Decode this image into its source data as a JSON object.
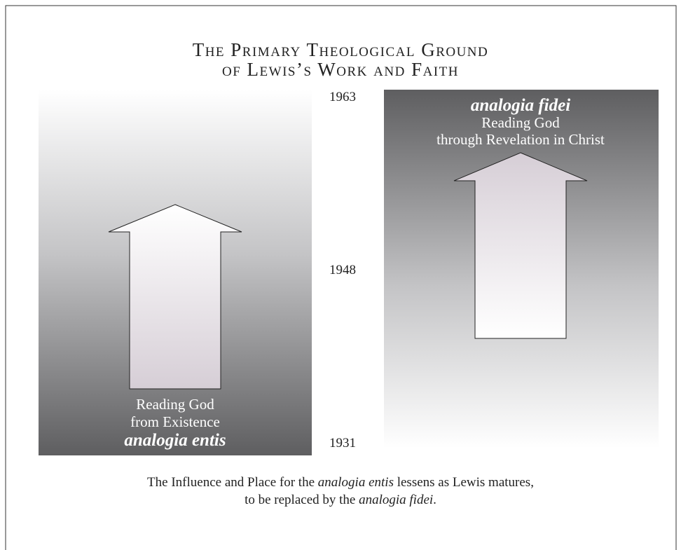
{
  "title": {
    "line1": "The Primary Theological Ground",
    "line2": "of Lewis’s Work and Faith"
  },
  "years": {
    "top": "1963",
    "middle": "1948",
    "bottom": "1931"
  },
  "left_panel": {
    "line1": "Reading God",
    "line2": "from Existence",
    "term": "analogia entis"
  },
  "right_panel": {
    "term": "analogia fidei",
    "line1": "Reading God",
    "line2": "through Revelation in Christ"
  },
  "caption": {
    "line1": [
      "The Influence and Place for the ",
      "analogia entis",
      " lessens as Lewis matures,"
    ],
    "line2": [
      "to be replaced by the ",
      "analogia fidei",
      "."
    ]
  }
}
